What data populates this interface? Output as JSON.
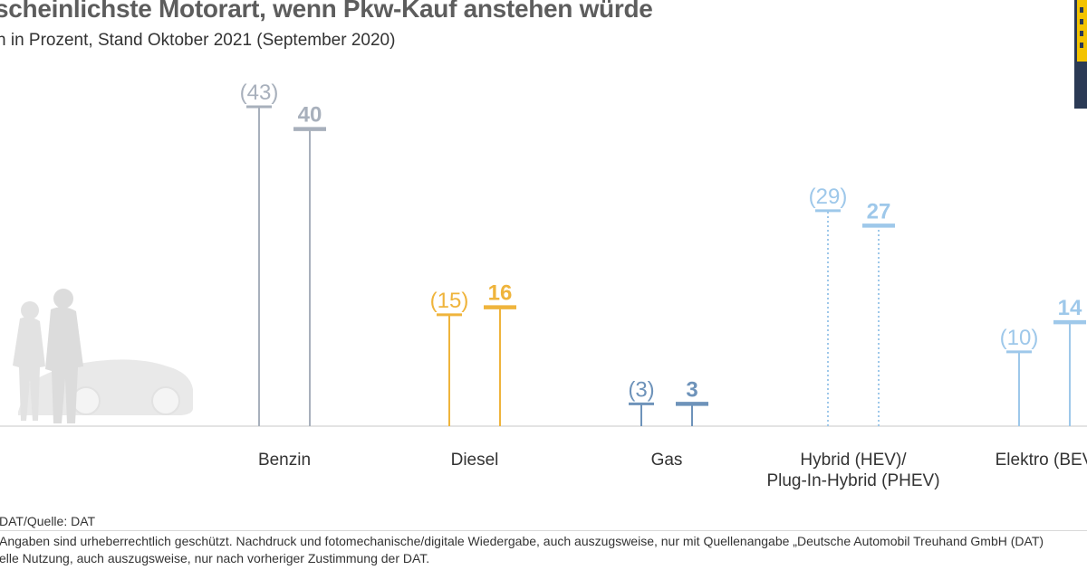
{
  "header": {
    "title": "scheinlichste Motorart, wenn Pkw-Kauf anstehen würde",
    "subtitle": "n in Prozent, Stand Oktober 2021 (September 2020)"
  },
  "footer": {
    "source": "DAT/Quelle: DAT",
    "copyright_line1": "Angaben sind urheberrechtlich geschützt. Nachdruck und fotomechanische/digitale Wiedergabe, auch auszugsweise, nur mit Quellenangabe „Deutsche Automobil Treuhand GmbH (DAT)",
    "copyright_line2": "elle Nutzung, auch auszugsweise, nur nach vorheriger Zustimmung der DAT."
  },
  "colors": {
    "benzin": "#a8b0bc",
    "diesel": "#efb43c",
    "gas": "#6e93ba",
    "hybrid": "#9ec8ea",
    "elektro": "#9ec8ea",
    "baseline": "#e3e3e3",
    "silhouette": "#e6e6e6"
  },
  "icons": {
    "illustration": "couple-and-car-silhouette-icon",
    "logo": "dat-logo-icon"
  },
  "chart_data": {
    "type": "bar",
    "categories": [
      {
        "lines": [
          "Benzin"
        ],
        "color": "#a8b0bc",
        "dotted": false
      },
      {
        "lines": [
          "Diesel"
        ],
        "color": "#efb43c",
        "dotted": false
      },
      {
        "lines": [
          "Gas"
        ],
        "color": "#6e93ba",
        "dotted": false
      },
      {
        "lines": [
          "Hybrid (HEV)/",
          "Plug-In-Hybrid (PHEV)"
        ],
        "color": "#9ec8ea",
        "dotted": true
      },
      {
        "lines": [
          "Elektro (BEV"
        ],
        "color": "#9ec8ea",
        "dotted": false
      }
    ],
    "series": [
      {
        "period": "September 2020",
        "values": [
          43,
          15,
          3,
          29,
          10
        ],
        "labels": [
          "(43)",
          "(15)",
          "(3)",
          "(29)",
          "(10)"
        ]
      },
      {
        "period": "Oktober 2021",
        "values": [
          40,
          16,
          3,
          27,
          14
        ],
        "labels": [
          "40",
          "16",
          "3",
          "27",
          "14"
        ]
      }
    ],
    "ylim": [
      0,
      43
    ],
    "unit": "Prozent",
    "legend": "none",
    "grid": false
  }
}
